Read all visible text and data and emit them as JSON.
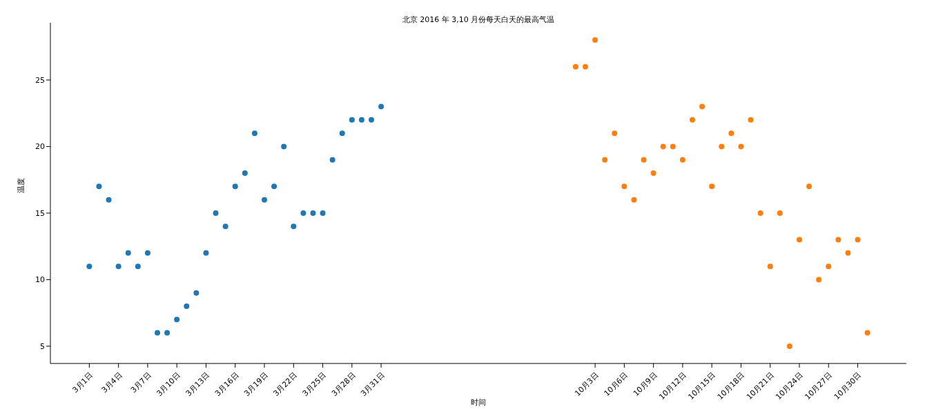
{
  "chart_data": {
    "type": "scatter",
    "title": "北京 2016 年 3,10 月份每天白天的最高气温",
    "xlabel": "时间",
    "ylabel": "温度",
    "categories": [
      "3月1日",
      null,
      null,
      "3月4日",
      null,
      null,
      "3月7日",
      null,
      null,
      "3月10日",
      null,
      null,
      "3月13日",
      null,
      null,
      "3月16日",
      null,
      null,
      "3月19日",
      null,
      null,
      "3月22日",
      null,
      null,
      "3月25日",
      null,
      null,
      "3月28日",
      null,
      null,
      "3月31日",
      null,
      null,
      null,
      null,
      null,
      null,
      null,
      null,
      null,
      null,
      null,
      null,
      null,
      null,
      null,
      null,
      null,
      null,
      null,
      null,
      null,
      "10月3日",
      null,
      null,
      "10月6日",
      null,
      null,
      "10月9日",
      null,
      null,
      "10月12日",
      null,
      null,
      "10月15日",
      null,
      null,
      "10月18日",
      null,
      null,
      "10月21日",
      null,
      null,
      "10月24日",
      null,
      null,
      "10月27日",
      null,
      null,
      "10月30日",
      null
    ],
    "series": [
      {
        "color": "#1f77b4",
        "values": [
          11,
          17,
          16,
          11,
          12,
          11,
          12,
          6,
          6,
          7,
          8,
          9,
          12,
          15,
          14,
          17,
          18,
          21,
          16,
          17,
          20,
          14,
          15,
          15,
          15,
          19,
          21,
          22,
          22,
          22,
          23,
          null,
          null,
          null,
          null,
          null,
          null,
          null,
          null,
          null,
          null,
          null,
          null,
          null,
          null,
          null,
          null,
          null,
          null,
          null,
          null,
          null,
          null,
          null,
          null,
          null,
          null,
          null,
          null,
          null,
          null,
          null,
          null,
          null,
          null,
          null,
          null,
          null,
          null,
          null,
          null,
          null,
          null,
          null,
          null,
          null,
          null,
          null,
          null,
          null,
          null
        ]
      },
      {
        "color": "#ff7f0e",
        "values": [
          null,
          null,
          null,
          null,
          null,
          null,
          null,
          null,
          null,
          null,
          null,
          null,
          null,
          null,
          null,
          null,
          null,
          null,
          null,
          null,
          null,
          null,
          null,
          null,
          null,
          null,
          null,
          null,
          null,
          null,
          null,
          null,
          null,
          null,
          null,
          null,
          null,
          null,
          null,
          null,
          null,
          null,
          null,
          null,
          null,
          null,
          null,
          null,
          null,
          null,
          26,
          26,
          28,
          19,
          21,
          17,
          16,
          19,
          18,
          20,
          20,
          19,
          22,
          23,
          17,
          20,
          21,
          20,
          22,
          15,
          11,
          15,
          5,
          13,
          17,
          10,
          11,
          13,
          12,
          13,
          6
        ]
      }
    ],
    "ylim": [
      3.7,
      29.3
    ],
    "yticks": [
      5,
      10,
      15,
      20,
      25
    ],
    "marker": "circle"
  }
}
